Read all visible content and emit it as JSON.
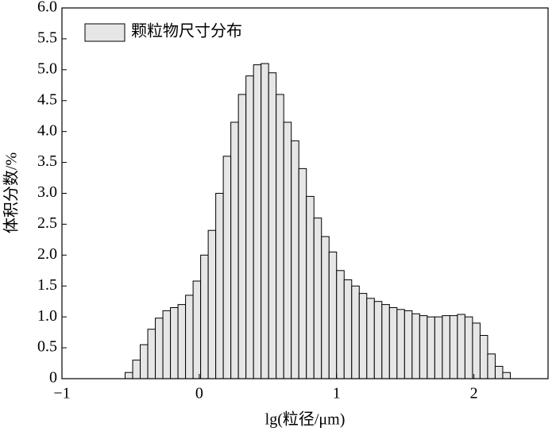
{
  "chart_data": {
    "type": "histogram",
    "xlabel": "lg(粒径/μm)",
    "ylabel": "体积分数/%",
    "series": [
      {
        "name": "颗粒物尺寸分布",
        "color": "#e6e6e6",
        "bins": [
          -0.54,
          -0.485,
          -0.43,
          -0.375,
          -0.32,
          -0.265,
          -0.21,
          -0.155,
          -0.1,
          -0.045,
          0.01,
          0.065,
          0.12,
          0.175,
          0.23,
          0.285,
          0.34,
          0.395,
          0.45,
          0.505,
          0.56,
          0.615,
          0.67,
          0.725,
          0.78,
          0.835,
          0.89,
          0.945,
          1.0,
          1.055,
          1.11,
          1.165,
          1.22,
          1.275,
          1.33,
          1.385,
          1.44,
          1.495,
          1.55,
          1.605,
          1.66,
          1.715,
          1.77,
          1.825,
          1.88,
          1.935,
          1.99,
          2.045,
          2.1,
          2.155,
          2.21,
          2.265
        ],
        "values": [
          0.1,
          0.3,
          0.55,
          0.8,
          0.98,
          1.1,
          1.15,
          1.2,
          1.35,
          1.58,
          2.0,
          2.4,
          3.0,
          3.6,
          4.15,
          4.6,
          4.9,
          5.08,
          5.1,
          4.95,
          4.6,
          4.15,
          3.85,
          3.4,
          2.95,
          2.6,
          2.3,
          2.05,
          1.75,
          1.6,
          1.5,
          1.38,
          1.3,
          1.25,
          1.2,
          1.15,
          1.12,
          1.1,
          1.05,
          1.02,
          1.0,
          1.0,
          1.02,
          1.02,
          1.04,
          1.0,
          0.9,
          0.7,
          0.4,
          0.2,
          0.1
        ]
      }
    ],
    "xlim": [
      -1,
      2.54
    ],
    "ylim": [
      0,
      6
    ],
    "xticks": [
      {
        "value": -1,
        "label": "−1"
      },
      0,
      1,
      2
    ],
    "yticks": [
      0,
      0.5,
      {
        "value": 1,
        "label": "1.0"
      },
      1.5,
      {
        "value": 2,
        "label": "2.0"
      },
      2.5,
      {
        "value": 3,
        "label": "3.0"
      },
      3.5,
      {
        "value": 4,
        "label": "4.0"
      },
      4.5,
      {
        "value": 5,
        "label": "5.0"
      },
      5.5,
      {
        "value": 6,
        "label": "6.0"
      }
    ],
    "legend": "upper left"
  }
}
